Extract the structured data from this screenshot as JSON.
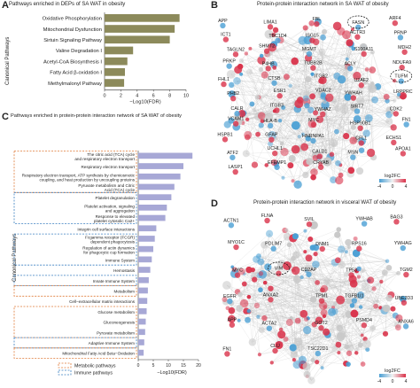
{
  "panels": {
    "A": {
      "letter": "A",
      "title": "Pathways enriched in DEPs of SA WAT in obesity",
      "ylabel": "Canonical Pathways",
      "xlabel": "−Log10(FDR)"
    },
    "B": {
      "letter": "B",
      "title": "Protein-protein interaction network in SA WAT of obesity",
      "legend_title": "log2FC",
      "legend_ticks": [
        "-4",
        "0",
        "4"
      ]
    },
    "C": {
      "letter": "C",
      "title": "Pathways enriched in protein-protein interaction network of SA WAT of obesity",
      "ylabel": "Canonical Pathways",
      "xlabel": "−Log10(FDR)",
      "legend": [
        {
          "label": "Metabolic pathways",
          "color": "#e07b39"
        },
        {
          "label": "Immune pathways",
          "color": "#3a7fc0"
        }
      ]
    },
    "D": {
      "letter": "D",
      "title": "Protein-protein interaction network in visceral WAT of obesity",
      "legend_title": "log2FC",
      "legend_ticks": [
        "-4",
        "0",
        "4"
      ]
    }
  },
  "chart_data": [
    {
      "type": "bar",
      "orientation": "horizontal",
      "title": "Pathways enriched in DEPs of SA WAT in obesity",
      "xlabel": "−Log10(FDR)",
      "ylabel": "Canonical Pathways",
      "categories": [
        "Oxidative Phosphorylation",
        "Mitochondrial Dysfunction",
        "Sirtuin Signaling Pathway",
        "Valine Degradation I",
        "Acetyl-CoA Biosynthesis I",
        "Fatty Acid β-oxidation I",
        "Methylmalonyl Pathway"
      ],
      "values": [
        9.2,
        8.6,
        8.0,
        3.5,
        2.8,
        2.5,
        2.4
      ],
      "xlim": [
        0,
        10
      ],
      "xticks": [
        "0",
        "2",
        "4",
        "6",
        "8",
        "10"
      ],
      "bar_color": "#8c8a5b"
    },
    {
      "type": "bar",
      "orientation": "horizontal",
      "title": "Pathways enriched in protein-protein interaction network of SA WAT of obesity",
      "xlabel": "−Log10(FDR)",
      "ylabel": "Canonical Pathways",
      "categories": [
        "The citric acid (TCA) cycle and respiratory electron transport",
        "Respiratory electron transport",
        "Respiratory electron transport, ATP synthesis by chemiosmotic coupling, and heat production by uncoupling proteins",
        "Pyruvate metabolism and Citric Acid (TCA) cycle",
        "Platelet degranulation",
        "Platelet activation, signaling and aggregation",
        "Response to elevated platelet cytosolic Ca2+",
        "Integrin cell surface interactions",
        "Fcgamma receptor (FCGR) dependent phagocytosis",
        "Regulation of actin dynamics for phagocytic cup formation",
        "Immune System",
        "Hemostasis",
        "Innate Immune System",
        "Metabolism",
        "Cell−extracellular matrix interactions",
        "Glucose metabolism",
        "Gluconeogenesis",
        "Pyruvate metabolism",
        "Adaptive Immune System",
        "Mitochondrial Fatty Acid Beta−Oxidation"
      ],
      "values": [
        18,
        15,
        14,
        12,
        11,
        9.5,
        9,
        6,
        5.5,
        5,
        4.5,
        4,
        3.5,
        3.2,
        3,
        2.8,
        2.5,
        2.3,
        2,
        1.8
      ],
      "xlim": [
        0,
        20
      ],
      "xticks": [
        "0",
        "5",
        "10",
        "15",
        "20"
      ],
      "bar_color": "#a7a8d6",
      "groups": [
        {
          "kind": "metabolic",
          "from": 0,
          "to": 3
        },
        {
          "kind": "immune",
          "from": 4,
          "to": 6
        },
        {
          "kind": "immune",
          "from": 8,
          "to": 10
        },
        {
          "kind": "immune",
          "from": 12,
          "to": 12
        },
        {
          "kind": "metabolic",
          "from": 13,
          "to": 13
        },
        {
          "kind": "metabolic",
          "from": 15,
          "to": 17
        },
        {
          "kind": "immune",
          "from": 18,
          "to": 18
        },
        {
          "kind": "metabolic",
          "from": 19,
          "to": 19
        }
      ]
    }
  ],
  "networkB": {
    "labels": [
      "APP",
      "LIMA1",
      "FBL",
      "FASN",
      "ARF4",
      "ICT1",
      "TBC1D4",
      "ISG15",
      "ACTR3",
      "PRNP",
      "TAGLN2",
      "SHMT2",
      "MGMT",
      "S100A11",
      "MDH2",
      "PRKP",
      "P4HB",
      "TUBB2B",
      "ACLY",
      "NDUFA9",
      "FHL1",
      "CTSB",
      "ITGB2",
      "U2AF2",
      "TUFM",
      "PHB2",
      "ESR1",
      "VDAC2",
      "YWHAH",
      "LRPPRC",
      "CALR",
      "ITGB3",
      "YWHAZ",
      "SIRT7",
      "CDK2",
      "VCAM1",
      "HLA-B",
      "MYC",
      "HSP90B1",
      "FN1",
      "HSPB1",
      "GFAP",
      "HNRNPA1",
      "CFL1",
      "ECHS1",
      "ATF2",
      "UCHL1",
      "CALD1",
      "MSN",
      "APOA1",
      "LASP1",
      "EFEMP1",
      "CRYAB"
    ],
    "circled": [
      "FASN",
      "TUFM"
    ]
  },
  "networkD": {
    "labels": [
      "ACTN1",
      "FLNA",
      "SVIL",
      "YWHAB",
      "BAG3",
      "MYO1C",
      "PDLIM7",
      "DNM1",
      "RPS16",
      "YWHAG",
      "MYC",
      "VIM",
      "CD2AP",
      "TP53",
      "TGM2",
      "EGFR",
      "ANXA2",
      "TPM1",
      "TGFB1I1",
      "UBE2D3",
      "APP",
      "ACTA2",
      "GOT2",
      "PSMD4",
      "ANXA6",
      "FN1",
      "CLU",
      "TSC22D1"
    ],
    "circled": [
      "VIM"
    ]
  },
  "colors": {
    "up": "#d9324a",
    "down": "#4a9fd4",
    "neutral": "#c8c8c8",
    "edge": "#bdbdbd",
    "barA": "#8c8a5b",
    "barC": "#a7a8d6",
    "metabolic": "#e07b39",
    "immune": "#3a7fc0"
  }
}
